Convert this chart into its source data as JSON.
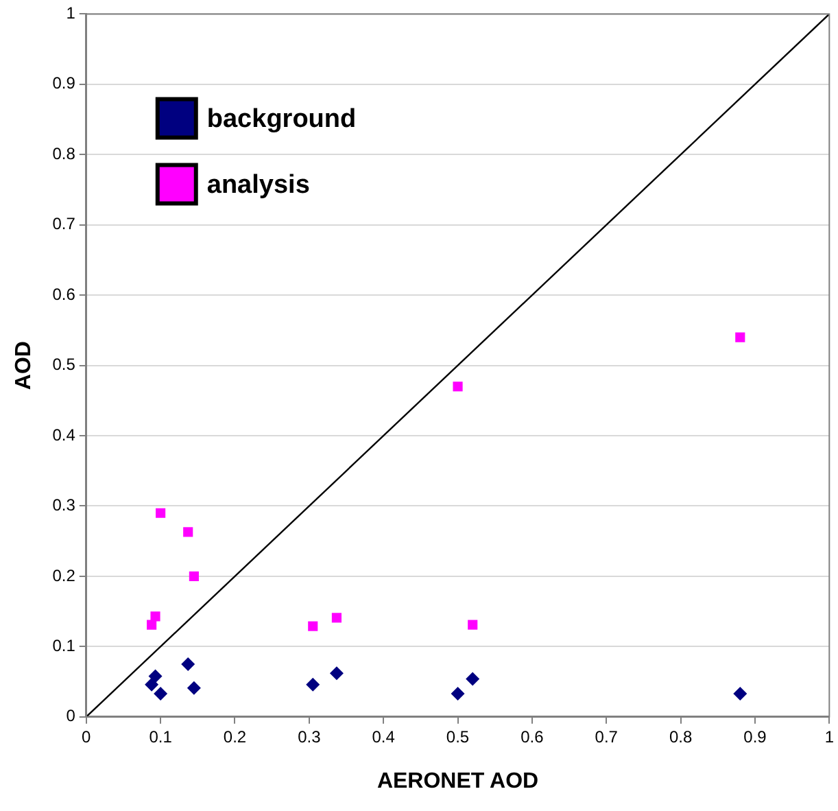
{
  "chart_data": {
    "type": "scatter",
    "xlabel": "AERONET AOD",
    "ylabel": "AOD",
    "xlim": [
      0,
      1
    ],
    "xticks": [
      0,
      0.1,
      0.2,
      0.3,
      0.4,
      0.5,
      0.6,
      0.7,
      0.8,
      0.9,
      1
    ],
    "ylim": [
      0,
      1
    ],
    "yticks": [
      0,
      0.1,
      0.2,
      0.3,
      0.4,
      0.5,
      0.6,
      0.7,
      0.8,
      0.9,
      1
    ],
    "grid": "y",
    "legend": "top left",
    "series": [
      {
        "name": "background",
        "color": "#000080",
        "marker": "diamond",
        "x": [
          0.088,
          0.093,
          0.1,
          0.137,
          0.145,
          0.305,
          0.337,
          0.5,
          0.52,
          0.88
        ],
        "values": [
          0.046,
          0.058,
          0.033,
          0.075,
          0.041,
          0.046,
          0.062,
          0.033,
          0.054,
          0.033
        ]
      },
      {
        "name": "analysis",
        "color": "#ff00ff",
        "marker": "square",
        "x": [
          0.088,
          0.093,
          0.1,
          0.137,
          0.145,
          0.305,
          0.337,
          0.5,
          0.52,
          0.88
        ],
        "values": [
          0.131,
          0.143,
          0.29,
          0.263,
          0.2,
          0.129,
          0.141,
          0.47,
          0.131,
          0.54
        ]
      },
      {
        "type": "line",
        "color": "#000000",
        "marker": "none",
        "x": [
          0,
          1
        ],
        "values": [
          0,
          1
        ]
      }
    ]
  }
}
